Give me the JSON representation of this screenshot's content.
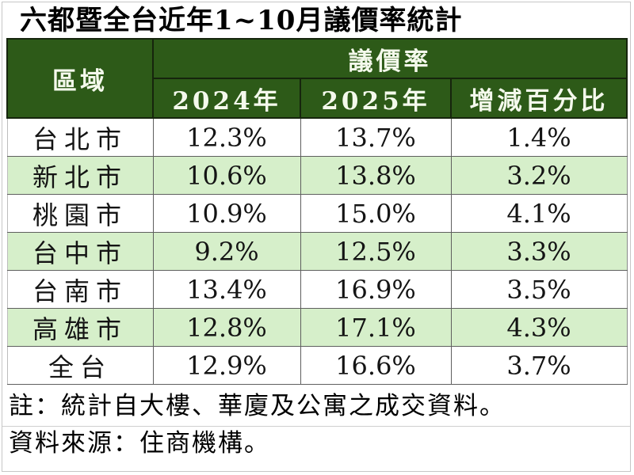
{
  "title": "六都暨全台近年1~10月議價率統計",
  "table": {
    "region_header": "區域",
    "group_header": "議價率",
    "col_headers": [
      "2024年",
      "2025年",
      "增減百分比"
    ],
    "rows": [
      {
        "region": "台北市",
        "y2024": "12.3%",
        "y2025": "13.7%",
        "diff": "1.4%"
      },
      {
        "region": "新北市",
        "y2024": "10.6%",
        "y2025": "13.8%",
        "diff": "3.2%"
      },
      {
        "region": "桃園市",
        "y2024": "10.9%",
        "y2025": "15.0%",
        "diff": "4.1%"
      },
      {
        "region": "台中市",
        "y2024": "9.2%",
        "y2025": "12.5%",
        "diff": "3.3%"
      },
      {
        "region": "台南市",
        "y2024": "13.4%",
        "y2025": "16.9%",
        "diff": "3.5%"
      },
      {
        "region": "高雄市",
        "y2024": "12.8%",
        "y2025": "17.1%",
        "diff": "4.3%"
      },
      {
        "region": "全台",
        "y2024": "12.9%",
        "y2025": "16.6%",
        "diff": "3.7%"
      }
    ]
  },
  "notes": {
    "note": "註：統計自大樓、華廈及公寓之成交資料。",
    "source": "資料來源：住商機構。"
  },
  "colors": {
    "header_green": "#2d5a18",
    "row_stripe_green": "#d6efca",
    "header_text": "#f4f9ec",
    "grid_line": "#5f5f5f"
  },
  "chart_data": {
    "type": "table",
    "title": "六都暨全台近年1~10月議價率統計",
    "columns": [
      "區域",
      "2024年",
      "2025年",
      "增減百分比"
    ],
    "unit": "%",
    "rows": [
      [
        "台北市",
        12.3,
        13.7,
        1.4
      ],
      [
        "新北市",
        10.6,
        13.8,
        3.2
      ],
      [
        "桃園市",
        10.9,
        15.0,
        4.1
      ],
      [
        "台中市",
        9.2,
        12.5,
        3.3
      ],
      [
        "台南市",
        13.4,
        16.9,
        3.5
      ],
      [
        "高雄市",
        12.8,
        17.1,
        4.3
      ],
      [
        "全台",
        12.9,
        16.6,
        3.7
      ]
    ],
    "notes": [
      "註：統計自大樓、華廈及公寓之成交資料。",
      "資料來源：住商機構。"
    ]
  }
}
